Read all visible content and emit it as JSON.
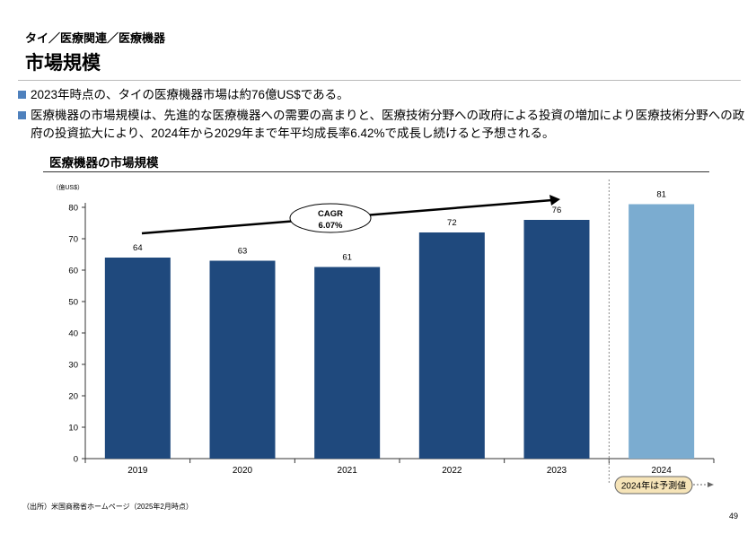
{
  "header": {
    "breadcrumb": "タイ／医療関連／医療機器",
    "title": "市場規模"
  },
  "bullets": [
    "2023年時点の、タイの医療機器市場は約76億US$である。",
    "医療機器の市場規模は、先進的な医療機器への需要の高まりと、医療技術分野への政府による投資の増加により医療技術分野への政府の投資拡大により、2024年から2029年まで年平均成長率6.42%で成長し続けると予想される。"
  ],
  "chart_data": {
    "type": "bar",
    "title": "医療機器の市場規模",
    "ylabel": "（億US$）",
    "categories": [
      "2019",
      "2020",
      "2021",
      "2022",
      "2023",
      "2024"
    ],
    "values": [
      64,
      63,
      61,
      72,
      76,
      81
    ],
    "forecast": [
      false,
      false,
      false,
      false,
      false,
      true
    ],
    "ylim": [
      0,
      80
    ],
    "yticks": [
      0,
      10,
      20,
      30,
      40,
      50,
      60,
      70,
      80
    ],
    "grid": false,
    "colors": {
      "actual": "#1f497d",
      "forecast": "#7bacd0"
    },
    "annotation": {
      "label": "CAGR",
      "value": "6.07%"
    },
    "forecast_note": "2024年は予測値"
  },
  "footer": {
    "source": "（出所）米国商務省ホームページ（2025年2月時点）",
    "page": "49"
  }
}
